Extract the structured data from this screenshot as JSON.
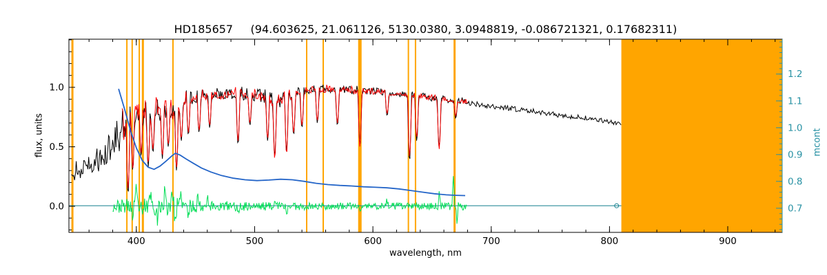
{
  "chart_data": {
    "type": "line",
    "title": "HD185657     (94.603625, 21.061126, 5130.0380, 3.0948819, -0.086721321, 0.17682311)",
    "xlabel": "wavelength, nm",
    "ylabel_left": "flux, units",
    "ylabel_right": "mcont",
    "xlim": [
      343,
      946
    ],
    "ylim_left": [
      -0.22,
      1.405
    ],
    "ylim_right": [
      0.61,
      1.33
    ],
    "xticks": {
      "values": [
        400,
        500,
        600,
        700,
        800,
        900
      ],
      "labels": [
        "400",
        "500",
        "600",
        "700",
        "800",
        "900"
      ],
      "minor_step": 20
    },
    "yticks_left": {
      "values": [
        0.0,
        0.5,
        1.0
      ],
      "labels": [
        "0.0",
        "0.5",
        "1.0"
      ],
      "minor_step": 0.1
    },
    "yticks_right": {
      "values": [
        0.7,
        0.8,
        0.9,
        1.0,
        1.1,
        1.2
      ],
      "labels": [
        "0.7",
        "0.8",
        "0.9",
        "1.0",
        "1.1",
        "1.2"
      ],
      "minor_step": 0.02
    },
    "colors": {
      "mask": "#ffa500",
      "observed": "#000000",
      "model": "#ff0000",
      "residual": "#00dd55",
      "mcont": "#2465c8",
      "axis_right": "#2992a4",
      "baseline": "#17808f"
    },
    "masked_region": [
      810,
      946
    ],
    "masked_lines": [
      {
        "wl": 346,
        "w": 3
      },
      {
        "wl": 392,
        "w": 2
      },
      {
        "wl": 396.5,
        "w": 2
      },
      {
        "wl": 402.5,
        "w": 2
      },
      {
        "wl": 405.5,
        "w": 3
      },
      {
        "wl": 431,
        "w": 2
      },
      {
        "wl": 544,
        "w": 2
      },
      {
        "wl": 558,
        "w": 2
      },
      {
        "wl": 589,
        "w": 5
      },
      {
        "wl": 630,
        "w": 2
      },
      {
        "wl": 636,
        "w": 2
      },
      {
        "wl": 669,
        "w": 3
      }
    ],
    "baseline": {
      "y": 0.004,
      "range": [
        343,
        810
      ],
      "marker_wl": 806
    },
    "series": [
      {
        "name": "observed-spectrum",
        "color_key": "observed",
        "axis": "left",
        "style": "noisy",
        "range": [
          345,
          810
        ],
        "step": 0.7,
        "seed": 11,
        "width": 1,
        "envelope": [
          [
            345,
            0.33,
            0.14
          ],
          [
            352,
            0.36,
            0.15
          ],
          [
            360,
            0.4,
            0.15
          ],
          [
            368,
            0.45,
            0.16
          ],
          [
            376,
            0.52,
            0.18
          ],
          [
            382,
            0.62,
            0.22
          ],
          [
            388,
            0.74,
            0.24
          ],
          [
            394,
            0.8,
            0.24
          ],
          [
            400,
            0.88,
            0.16
          ],
          [
            406,
            0.86,
            0.18
          ],
          [
            412,
            0.84,
            0.2
          ],
          [
            418,
            0.87,
            0.16
          ],
          [
            424,
            0.88,
            0.14
          ],
          [
            430,
            0.85,
            0.16
          ],
          [
            436,
            0.9,
            0.12
          ],
          [
            442,
            0.93,
            0.09
          ],
          [
            450,
            0.95,
            0.08
          ],
          [
            460,
            0.96,
            0.07
          ],
          [
            470,
            0.96,
            0.07
          ],
          [
            480,
            0.97,
            0.075
          ],
          [
            490,
            0.97,
            0.08
          ],
          [
            500,
            0.97,
            0.085
          ],
          [
            510,
            0.96,
            0.1
          ],
          [
            518,
            0.93,
            0.12
          ],
          [
            526,
            0.95,
            0.1
          ],
          [
            535,
            0.98,
            0.07
          ],
          [
            545,
            1.0,
            0.055
          ],
          [
            555,
            1.0,
            0.05
          ],
          [
            565,
            1.005,
            0.05
          ],
          [
            575,
            1.0,
            0.05
          ],
          [
            585,
            0.99,
            0.055
          ],
          [
            595,
            0.98,
            0.045
          ],
          [
            605,
            0.975,
            0.04
          ],
          [
            615,
            0.965,
            0.04
          ],
          [
            625,
            0.955,
            0.04
          ],
          [
            635,
            0.945,
            0.04
          ],
          [
            645,
            0.935,
            0.04
          ],
          [
            655,
            0.915,
            0.05
          ],
          [
            665,
            0.905,
            0.035
          ],
          [
            675,
            0.895,
            0.035
          ],
          [
            685,
            0.875,
            0.033
          ],
          [
            700,
            0.85,
            0.03
          ],
          [
            715,
            0.83,
            0.03
          ],
          [
            730,
            0.815,
            0.03
          ],
          [
            745,
            0.795,
            0.03
          ],
          [
            760,
            0.77,
            0.03
          ],
          [
            775,
            0.755,
            0.028
          ],
          [
            790,
            0.735,
            0.028
          ],
          [
            800,
            0.72,
            0.028
          ],
          [
            810,
            0.705,
            0.028
          ]
        ],
        "dips": [
          [
            393,
            0.1
          ],
          [
            397,
            0.3
          ],
          [
            404,
            0.42
          ],
          [
            410,
            0.33
          ],
          [
            414,
            0.45
          ],
          [
            422,
            0.4
          ],
          [
            427,
            0.5
          ],
          [
            434,
            0.3
          ],
          [
            438,
            0.55
          ],
          [
            444,
            0.6
          ],
          [
            453,
            0.62
          ],
          [
            462,
            0.66
          ],
          [
            486,
            0.52
          ],
          [
            496,
            0.68
          ],
          [
            511,
            0.55
          ],
          [
            517,
            0.42
          ],
          [
            527,
            0.46
          ],
          [
            533,
            0.6
          ],
          [
            540,
            0.66
          ],
          [
            553,
            0.7
          ],
          [
            570,
            0.68
          ],
          [
            589,
            0.52
          ],
          [
            612,
            0.76
          ],
          [
            631,
            0.38
          ],
          [
            637,
            0.55
          ],
          [
            656,
            0.5
          ],
          [
            670,
            0.74
          ]
        ]
      },
      {
        "name": "model-spectrum",
        "color_key": "model",
        "axis": "left",
        "style": "noisy",
        "range": [
          388,
          680
        ],
        "step": 0.7,
        "seed": 7,
        "width": 1,
        "envelope": [
          [
            388,
            0.74,
            0.2
          ],
          [
            394,
            0.8,
            0.2
          ],
          [
            400,
            0.88,
            0.14
          ],
          [
            406,
            0.86,
            0.15
          ],
          [
            412,
            0.84,
            0.17
          ],
          [
            418,
            0.87,
            0.13
          ],
          [
            424,
            0.88,
            0.12
          ],
          [
            430,
            0.85,
            0.14
          ],
          [
            436,
            0.9,
            0.1
          ],
          [
            442,
            0.93,
            0.08
          ],
          [
            450,
            0.95,
            0.07
          ],
          [
            460,
            0.96,
            0.06
          ],
          [
            470,
            0.96,
            0.06
          ],
          [
            480,
            0.97,
            0.065
          ],
          [
            490,
            0.97,
            0.07
          ],
          [
            500,
            0.97,
            0.075
          ],
          [
            510,
            0.96,
            0.09
          ],
          [
            518,
            0.93,
            0.1
          ],
          [
            526,
            0.95,
            0.09
          ],
          [
            535,
            0.98,
            0.06
          ],
          [
            545,
            1.0,
            0.05
          ],
          [
            555,
            1.0,
            0.045
          ],
          [
            565,
            1.0,
            0.045
          ],
          [
            575,
            1.0,
            0.045
          ],
          [
            585,
            0.99,
            0.05
          ],
          [
            595,
            0.98,
            0.04
          ],
          [
            605,
            0.975,
            0.035
          ],
          [
            615,
            0.965,
            0.035
          ],
          [
            625,
            0.955,
            0.035
          ],
          [
            635,
            0.945,
            0.035
          ],
          [
            645,
            0.935,
            0.035
          ],
          [
            655,
            0.915,
            0.045
          ],
          [
            665,
            0.905,
            0.03
          ],
          [
            675,
            0.895,
            0.03
          ],
          [
            680,
            0.89,
            0.03
          ]
        ],
        "dips": [
          [
            393,
            0.15
          ],
          [
            397,
            0.32
          ],
          [
            404,
            0.45
          ],
          [
            410,
            0.36
          ],
          [
            414,
            0.48
          ],
          [
            422,
            0.42
          ],
          [
            427,
            0.52
          ],
          [
            434,
            0.32
          ],
          [
            438,
            0.57
          ],
          [
            444,
            0.62
          ],
          [
            453,
            0.64
          ],
          [
            462,
            0.68
          ],
          [
            486,
            0.55
          ],
          [
            496,
            0.7
          ],
          [
            511,
            0.57
          ],
          [
            517,
            0.4
          ],
          [
            527,
            0.44
          ],
          [
            533,
            0.62
          ],
          [
            540,
            0.68
          ],
          [
            553,
            0.72
          ],
          [
            570,
            0.7
          ],
          [
            589,
            0.5
          ],
          [
            612,
            0.78
          ],
          [
            631,
            0.42
          ],
          [
            637,
            0.58
          ],
          [
            656,
            0.48
          ],
          [
            670,
            0.76
          ]
        ]
      },
      {
        "name": "residual-spectrum",
        "color_key": "residual",
        "axis": "left",
        "style": "noisy",
        "range": [
          380,
          680
        ],
        "step": 0.6,
        "seed": 23,
        "width": 1,
        "envelope": [
          [
            380,
            0.0,
            0.05
          ],
          [
            390,
            0.0,
            0.06
          ],
          [
            400,
            0.0,
            0.075
          ],
          [
            410,
            0.0,
            0.08
          ],
          [
            420,
            0.0,
            0.075
          ],
          [
            430,
            0.0,
            0.085
          ],
          [
            440,
            0.0,
            0.06
          ],
          [
            455,
            0.0,
            0.05
          ],
          [
            470,
            0.0,
            0.045
          ],
          [
            485,
            0.0,
            0.04
          ],
          [
            500,
            0.0,
            0.038
          ],
          [
            520,
            0.0,
            0.035
          ],
          [
            540,
            0.0,
            0.032
          ],
          [
            560,
            0.0,
            0.03
          ],
          [
            580,
            0.0,
            0.03
          ],
          [
            600,
            0.0,
            0.028
          ],
          [
            620,
            0.0,
            0.03
          ],
          [
            640,
            0.0,
            0.028
          ],
          [
            660,
            0.0,
            0.03
          ],
          [
            672,
            0.0,
            0.035
          ],
          [
            680,
            0.0,
            0.03
          ]
        ],
        "symmetric": true,
        "spikes": [
          [
            397,
            -0.12
          ],
          [
            400,
            0.15
          ],
          [
            405,
            -0.14
          ],
          [
            412,
            0.16
          ],
          [
            418,
            -0.12
          ],
          [
            424,
            0.14
          ],
          [
            430,
            0.2
          ],
          [
            433,
            -0.15
          ],
          [
            438,
            0.12
          ],
          [
            444,
            -0.1
          ],
          [
            452,
            0.1
          ],
          [
            460,
            0.12
          ],
          [
            486,
            -0.09
          ],
          [
            517,
            0.09
          ],
          [
            527,
            -0.07
          ],
          [
            589,
            -0.06
          ],
          [
            612,
            0.06
          ],
          [
            656,
            0.12
          ],
          [
            668,
            0.27
          ],
          [
            671,
            -0.12
          ]
        ]
      },
      {
        "name": "mcont-curve",
        "color_key": "mcont",
        "axis": "right",
        "style": "smooth",
        "width": 1.8,
        "points": [
          [
            385,
            1.145
          ],
          [
            390,
            1.07
          ],
          [
            395,
            0.99
          ],
          [
            400,
            0.925
          ],
          [
            405,
            0.878
          ],
          [
            410,
            0.853
          ],
          [
            415,
            0.845
          ],
          [
            420,
            0.857
          ],
          [
            425,
            0.875
          ],
          [
            430,
            0.895
          ],
          [
            433,
            0.905
          ],
          [
            437,
            0.898
          ],
          [
            442,
            0.884
          ],
          [
            448,
            0.868
          ],
          [
            455,
            0.85
          ],
          [
            463,
            0.835
          ],
          [
            472,
            0.822
          ],
          [
            482,
            0.812
          ],
          [
            492,
            0.806
          ],
          [
            502,
            0.803
          ],
          [
            512,
            0.805
          ],
          [
            522,
            0.808
          ],
          [
            532,
            0.806
          ],
          [
            542,
            0.8
          ],
          [
            552,
            0.793
          ],
          [
            562,
            0.788
          ],
          [
            572,
            0.785
          ],
          [
            582,
            0.783
          ],
          [
            592,
            0.78
          ],
          [
            602,
            0.778
          ],
          [
            612,
            0.776
          ],
          [
            622,
            0.772
          ],
          [
            632,
            0.766
          ],
          [
            642,
            0.76
          ],
          [
            652,
            0.754
          ],
          [
            662,
            0.75
          ],
          [
            670,
            0.748
          ],
          [
            678,
            0.747
          ]
        ]
      }
    ]
  }
}
